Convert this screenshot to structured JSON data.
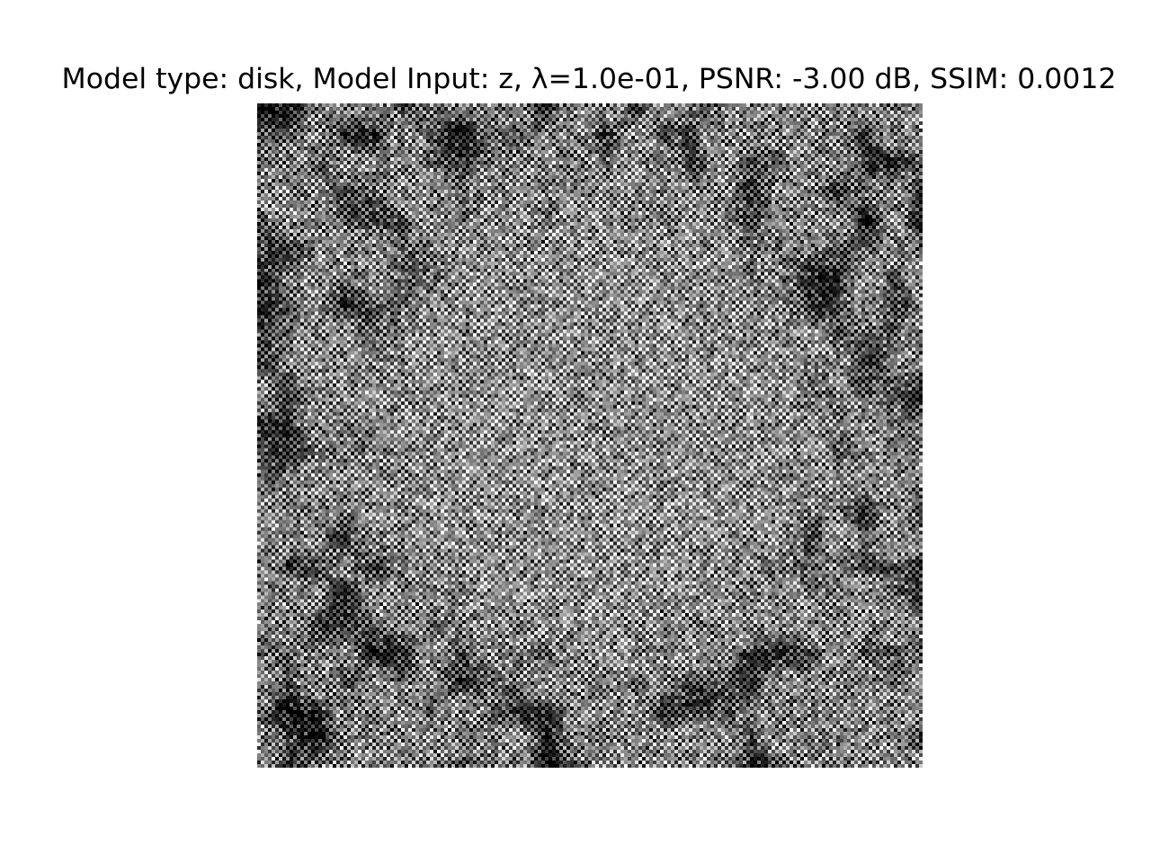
{
  "figure": {
    "title": "Model type: disk, Model Input: z, λ=1.0e-01, PSNR: -3.00 dB, SSIM: 0.0012"
  },
  "image": {
    "colormap": "gray",
    "pattern": "noisy reconstruction with faint central disk",
    "background_color": "#ffffff"
  }
}
